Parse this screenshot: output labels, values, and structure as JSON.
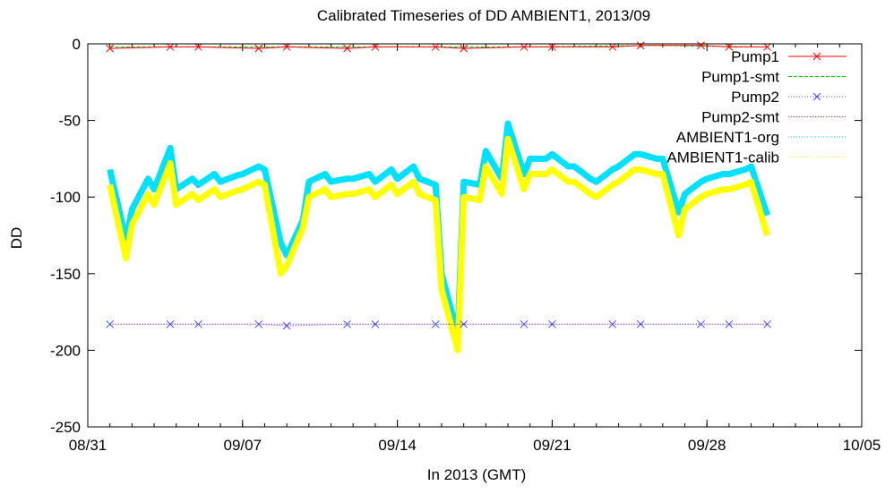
{
  "chart_data": {
    "type": "line",
    "title": "Calibrated Timeseries of DD AMBIENT1, 2013/09",
    "xlabel": "In 2013 (GMT)",
    "ylabel": "DD",
    "x_domain": [
      "2013-08-31",
      "2013-10-05"
    ],
    "ylim": [
      -250,
      0
    ],
    "x_ticks": [
      {
        "date": "2013-08-31",
        "label": "08/31"
      },
      {
        "date": "2013-09-07",
        "label": "09/07"
      },
      {
        "date": "2013-09-14",
        "label": "09/14"
      },
      {
        "date": "2013-09-21",
        "label": "09/21"
      },
      {
        "date": "2013-09-28",
        "label": "09/28"
      },
      {
        "date": "2013-10-05",
        "label": "10/05"
      }
    ],
    "y_ticks": [
      {
        "value": 0,
        "label": "0"
      },
      {
        "value": -50,
        "label": "-50"
      },
      {
        "value": -100,
        "label": "-100"
      },
      {
        "value": -150,
        "label": "-150"
      },
      {
        "value": -200,
        "label": "-200"
      },
      {
        "value": -250,
        "label": "-250"
      }
    ],
    "legend_position": "top-right",
    "series": [
      {
        "name": "Pump1",
        "color": "#ff0000",
        "style": "line-x",
        "x": [
          "2013-09-01",
          "2013-09-03",
          "2013-09-05",
          "2013-09-07",
          "2013-09-09",
          "2013-09-11",
          "2013-09-13",
          "2013-09-15",
          "2013-09-17",
          "2013-09-19",
          "2013-09-21",
          "2013-09-23",
          "2013-09-25",
          "2013-09-27",
          "2013-09-29",
          "2013-09-30"
        ],
        "y": [
          -3,
          -2,
          -2,
          -3,
          -2,
          -3,
          -2,
          -2,
          -3,
          -2,
          -2,
          -2,
          -1,
          -1,
          -2,
          -2
        ]
      },
      {
        "name": "Pump1-smt",
        "color": "#00cc00",
        "style": "dashed",
        "x": [
          "2013-09-01",
          "2013-09-05",
          "2013-09-10",
          "2013-09-15",
          "2013-09-20",
          "2013-09-25",
          "2013-09-30"
        ],
        "y": [
          -2,
          -2,
          -2,
          -2,
          -2,
          -1,
          -2
        ]
      },
      {
        "name": "Pump2",
        "color": "#4444ff",
        "style": "dotted-x",
        "x": [
          "2013-09-01",
          "2013-09-03",
          "2013-09-05",
          "2013-09-07",
          "2013-09-09",
          "2013-09-11",
          "2013-09-13",
          "2013-09-15",
          "2013-09-17",
          "2013-09-19",
          "2013-09-21",
          "2013-09-23",
          "2013-09-25",
          "2013-09-27",
          "2013-09-29",
          "2013-09-30"
        ],
        "y": [
          -183,
          -183,
          -183,
          -183,
          -184,
          -183,
          -183,
          -183,
          -183,
          -183,
          -183,
          -183,
          -183,
          -183,
          -183,
          -183
        ]
      },
      {
        "name": "Pump2-smt",
        "color": "#cc00cc",
        "style": "dotted",
        "x": [
          "2013-09-01",
          "2013-09-10",
          "2013-09-20",
          "2013-09-30"
        ],
        "y": [
          -183,
          -183,
          -183,
          -183
        ]
      },
      {
        "name": "AMBIENT1-org",
        "color": "#00e0ff",
        "style": "dense",
        "x": [
          "2013-09-01",
          "2013-09-01",
          "2013-09-02",
          "2013-09-02",
          "2013-09-03",
          "2013-09-03",
          "2013-09-04",
          "2013-09-04",
          "2013-09-05",
          "2013-09-05",
          "2013-09-06",
          "2013-09-06",
          "2013-09-07",
          "2013-09-07",
          "2013-09-08",
          "2013-09-08",
          "2013-09-09",
          "2013-09-09",
          "2013-09-10",
          "2013-09-10",
          "2013-09-11",
          "2013-09-11",
          "2013-09-12",
          "2013-09-12",
          "2013-09-13",
          "2013-09-13",
          "2013-09-14",
          "2013-09-14",
          "2013-09-15",
          "2013-09-15",
          "2013-09-16",
          "2013-09-16",
          "2013-09-17",
          "2013-09-17",
          "2013-09-18",
          "2013-09-18",
          "2013-09-19",
          "2013-09-19",
          "2013-09-20",
          "2013-09-20",
          "2013-09-21",
          "2013-09-21",
          "2013-09-22",
          "2013-09-22",
          "2013-09-23",
          "2013-09-23",
          "2013-09-24",
          "2013-09-24",
          "2013-09-25",
          "2013-09-25",
          "2013-09-26",
          "2013-09-26",
          "2013-09-27",
          "2013-09-27",
          "2013-09-28",
          "2013-09-28",
          "2013-09-29",
          "2013-09-29",
          "2013-09-30",
          "2013-09-30"
        ],
        "y": [
          -82,
          -128,
          -108,
          -88,
          -95,
          -68,
          -95,
          -88,
          -92,
          -85,
          -90,
          -86,
          -85,
          -80,
          -82,
          -130,
          -138,
          -115,
          -90,
          -85,
          -90,
          -88,
          -88,
          -85,
          -90,
          -82,
          -88,
          -80,
          -88,
          -92,
          -150,
          -190,
          -90,
          -92,
          -70,
          -88,
          -52,
          -85,
          -75,
          -75,
          -72,
          -80,
          -80,
          -88,
          -90,
          -82,
          -80,
          -72,
          -72,
          -75,
          -75,
          -110,
          -98,
          -90,
          -88,
          -85,
          -85,
          -82,
          -80,
          -112
        ]
      },
      {
        "name": "AMBIENT1-calib",
        "color": "#ffff00",
        "style": "dense",
        "x": [
          "2013-09-01",
          "2013-09-01",
          "2013-09-02",
          "2013-09-02",
          "2013-09-03",
          "2013-09-03",
          "2013-09-04",
          "2013-09-04",
          "2013-09-05",
          "2013-09-05",
          "2013-09-06",
          "2013-09-06",
          "2013-09-07",
          "2013-09-07",
          "2013-09-08",
          "2013-09-08",
          "2013-09-09",
          "2013-09-09",
          "2013-09-10",
          "2013-09-10",
          "2013-09-11",
          "2013-09-11",
          "2013-09-12",
          "2013-09-12",
          "2013-09-13",
          "2013-09-13",
          "2013-09-14",
          "2013-09-14",
          "2013-09-15",
          "2013-09-15",
          "2013-09-16",
          "2013-09-16",
          "2013-09-17",
          "2013-09-17",
          "2013-09-18",
          "2013-09-18",
          "2013-09-19",
          "2013-09-19",
          "2013-09-20",
          "2013-09-20",
          "2013-09-21",
          "2013-09-21",
          "2013-09-22",
          "2013-09-22",
          "2013-09-23",
          "2013-09-23",
          "2013-09-24",
          "2013-09-24",
          "2013-09-25",
          "2013-09-25",
          "2013-09-26",
          "2013-09-26",
          "2013-09-27",
          "2013-09-27",
          "2013-09-28",
          "2013-09-28",
          "2013-09-29",
          "2013-09-29",
          "2013-09-30",
          "2013-09-30"
        ],
        "y": [
          -92,
          -140,
          -118,
          -98,
          -105,
          -78,
          -105,
          -98,
          -102,
          -95,
          -100,
          -96,
          -95,
          -90,
          -92,
          -150,
          -145,
          -120,
          -100,
          -95,
          -100,
          -98,
          -98,
          -95,
          -100,
          -92,
          -98,
          -90,
          -98,
          -102,
          -160,
          -200,
          -100,
          -102,
          -80,
          -98,
          -62,
          -95,
          -85,
          -85,
          -82,
          -90,
          -90,
          -98,
          -100,
          -92,
          -90,
          -82,
          -82,
          -85,
          -85,
          -125,
          -108,
          -100,
          -98,
          -95,
          -95,
          -92,
          -90,
          -125
        ]
      }
    ]
  }
}
